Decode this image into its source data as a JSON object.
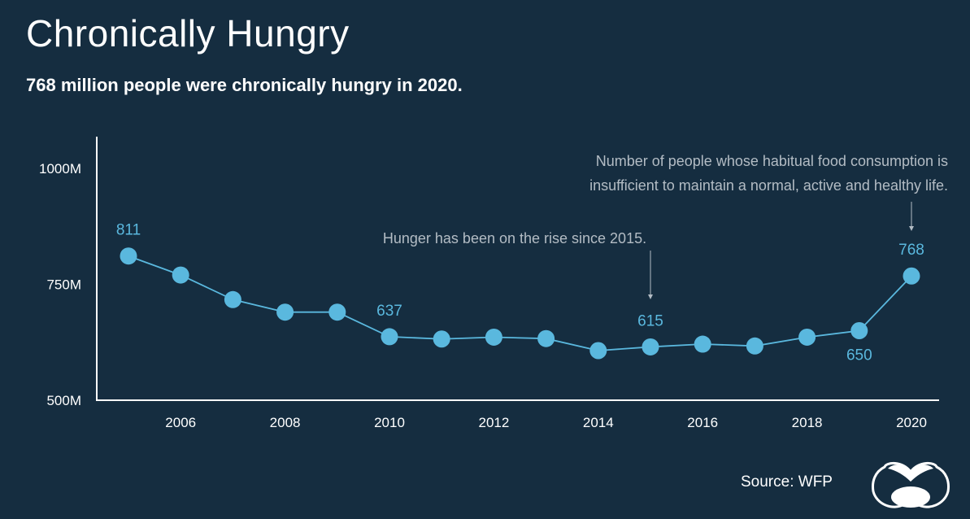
{
  "title": "Chronically Hungry",
  "subtitle": "768 million people were chronically hungry in 2020.",
  "source": "Source: WFP",
  "colors": {
    "background": "#152d40",
    "series": "#5ab8de",
    "annotation": "#b3bcc4",
    "axis": "#ffffff"
  },
  "chart_data": {
    "type": "line",
    "x": [
      2005,
      2006,
      2007,
      2008,
      2009,
      2010,
      2011,
      2012,
      2013,
      2014,
      2015,
      2016,
      2017,
      2018,
      2019,
      2020
    ],
    "values": [
      811,
      770,
      717,
      690,
      690,
      637,
      632,
      636,
      633,
      607,
      615,
      621,
      617,
      636,
      650,
      768
    ],
    "unit": "M",
    "ylim": [
      500,
      1000
    ],
    "yticks": [
      500,
      750,
      1000
    ],
    "ytick_labels": [
      "500M",
      "750M",
      "1000M"
    ],
    "xticks": [
      2006,
      2008,
      2010,
      2012,
      2014,
      2016,
      2018,
      2020
    ],
    "xtick_labels": [
      "2006",
      "2008",
      "2010",
      "2012",
      "2014",
      "2016",
      "2018",
      "2020"
    ],
    "grid": false,
    "data_labels": [
      {
        "x": 2005,
        "text": "811",
        "position": "above"
      },
      {
        "x": 2010,
        "text": "637",
        "position": "above"
      },
      {
        "x": 2015,
        "text": "615",
        "position": "above"
      },
      {
        "x": 2019,
        "text": "650",
        "position": "below"
      },
      {
        "x": 2020,
        "text": "768",
        "position": "above"
      }
    ],
    "annotations": [
      {
        "x": 2015,
        "lines": [
          "Hunger has been on the rise since 2015."
        ]
      },
      {
        "x": 2020,
        "lines": [
          "Number of people whose habitual food consumption is",
          "insufficient to maintain a normal, active and healthy life."
        ]
      }
    ]
  }
}
